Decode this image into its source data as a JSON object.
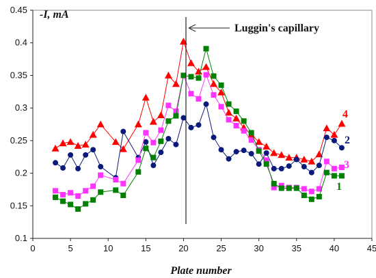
{
  "chart_data": {
    "type": "scatter",
    "xlabel": "Plate number",
    "ylabel": "-I, mA",
    "xlim": [
      0,
      45
    ],
    "ylim": [
      0.1,
      0.45
    ],
    "xticks": [
      "0",
      "5",
      "10",
      "15",
      "20",
      "25",
      "30",
      "35",
      "40",
      "45"
    ],
    "yticks": [
      "0.1",
      "0.15",
      "0.2",
      "0.25",
      "0.3",
      "0.35",
      "0.4",
      "0.45"
    ],
    "annotation": {
      "text": "Luggin's capillary",
      "x": 20.5
    },
    "series": [
      {
        "name": "4",
        "color": "#ff0000",
        "marker": "triangle",
        "x": [
          3,
          4,
          5,
          6,
          7,
          8,
          9,
          11,
          12,
          14,
          15,
          16,
          17,
          18,
          19,
          20,
          21,
          22,
          23,
          24,
          25,
          26,
          27,
          28,
          29,
          30,
          31,
          32,
          33,
          34,
          35,
          36,
          37,
          38,
          39,
          40,
          41
        ],
        "y": [
          0.238,
          0.246,
          0.248,
          0.242,
          0.244,
          0.259,
          0.275,
          0.248,
          0.237,
          0.275,
          0.316,
          0.279,
          0.289,
          0.35,
          0.337,
          0.402,
          0.369,
          0.356,
          0.363,
          0.337,
          0.324,
          0.293,
          0.284,
          0.27,
          0.259,
          0.248,
          0.241,
          0.231,
          0.228,
          0.224,
          0.224,
          0.221,
          0.218,
          0.229,
          0.269,
          0.259,
          0.276
        ]
      },
      {
        "name": "2",
        "color": "#0a1a7a",
        "marker": "circle",
        "x": [
          3,
          4,
          5,
          6,
          7,
          8,
          9,
          11,
          12,
          14,
          15,
          16,
          17,
          18,
          19,
          20,
          21,
          22,
          23,
          24,
          25,
          26,
          27,
          28,
          29,
          30,
          31,
          32,
          33,
          34,
          35,
          36,
          37,
          38,
          39,
          40,
          41
        ],
        "y": [
          0.216,
          0.208,
          0.228,
          0.207,
          0.228,
          0.236,
          0.21,
          0.193,
          0.264,
          0.224,
          0.248,
          0.212,
          0.232,
          0.253,
          0.244,
          0.285,
          0.27,
          0.274,
          0.306,
          0.255,
          0.236,
          0.222,
          0.233,
          0.235,
          0.23,
          0.214,
          0.231,
          0.207,
          0.207,
          0.211,
          0.221,
          0.21,
          0.201,
          0.212,
          0.255,
          0.25,
          0.239
        ]
      },
      {
        "name": "3",
        "color": "#ff33ff",
        "marker": "square",
        "x": [
          3,
          4,
          5,
          6,
          7,
          8,
          9,
          11,
          12,
          14,
          15,
          16,
          17,
          18,
          19,
          20,
          21,
          22,
          23,
          24,
          25,
          26,
          27,
          28,
          29,
          30,
          31,
          32,
          33,
          34,
          35,
          36,
          37,
          38,
          39,
          40,
          41
        ],
        "y": [
          0.173,
          0.167,
          0.17,
          0.165,
          0.173,
          0.18,
          0.197,
          0.19,
          0.184,
          0.22,
          0.262,
          0.247,
          0.266,
          0.304,
          0.295,
          0.35,
          0.322,
          0.314,
          0.351,
          0.32,
          0.302,
          0.282,
          0.273,
          0.265,
          0.251,
          0.236,
          0.22,
          0.178,
          0.181,
          0.178,
          0.178,
          0.176,
          0.172,
          0.176,
          0.218,
          0.207,
          0.209
        ]
      },
      {
        "name": "1",
        "color": "#008000",
        "marker": "square",
        "x": [
          3,
          4,
          5,
          6,
          7,
          8,
          9,
          11,
          12,
          14,
          15,
          16,
          17,
          18,
          19,
          20,
          21,
          22,
          23,
          24,
          25,
          26,
          27,
          28,
          29,
          30,
          31,
          32,
          33,
          34,
          35,
          36,
          37,
          38,
          39,
          40,
          41
        ],
        "y": [
          0.163,
          0.157,
          0.152,
          0.145,
          0.153,
          0.159,
          0.171,
          0.174,
          0.166,
          0.202,
          0.238,
          0.224,
          0.249,
          0.28,
          0.288,
          0.35,
          0.348,
          0.346,
          0.391,
          0.349,
          0.335,
          0.306,
          0.295,
          0.28,
          0.262,
          0.234,
          0.214,
          0.184,
          0.177,
          0.177,
          0.177,
          0.166,
          0.16,
          0.164,
          0.201,
          0.196,
          0.196
        ]
      }
    ]
  }
}
